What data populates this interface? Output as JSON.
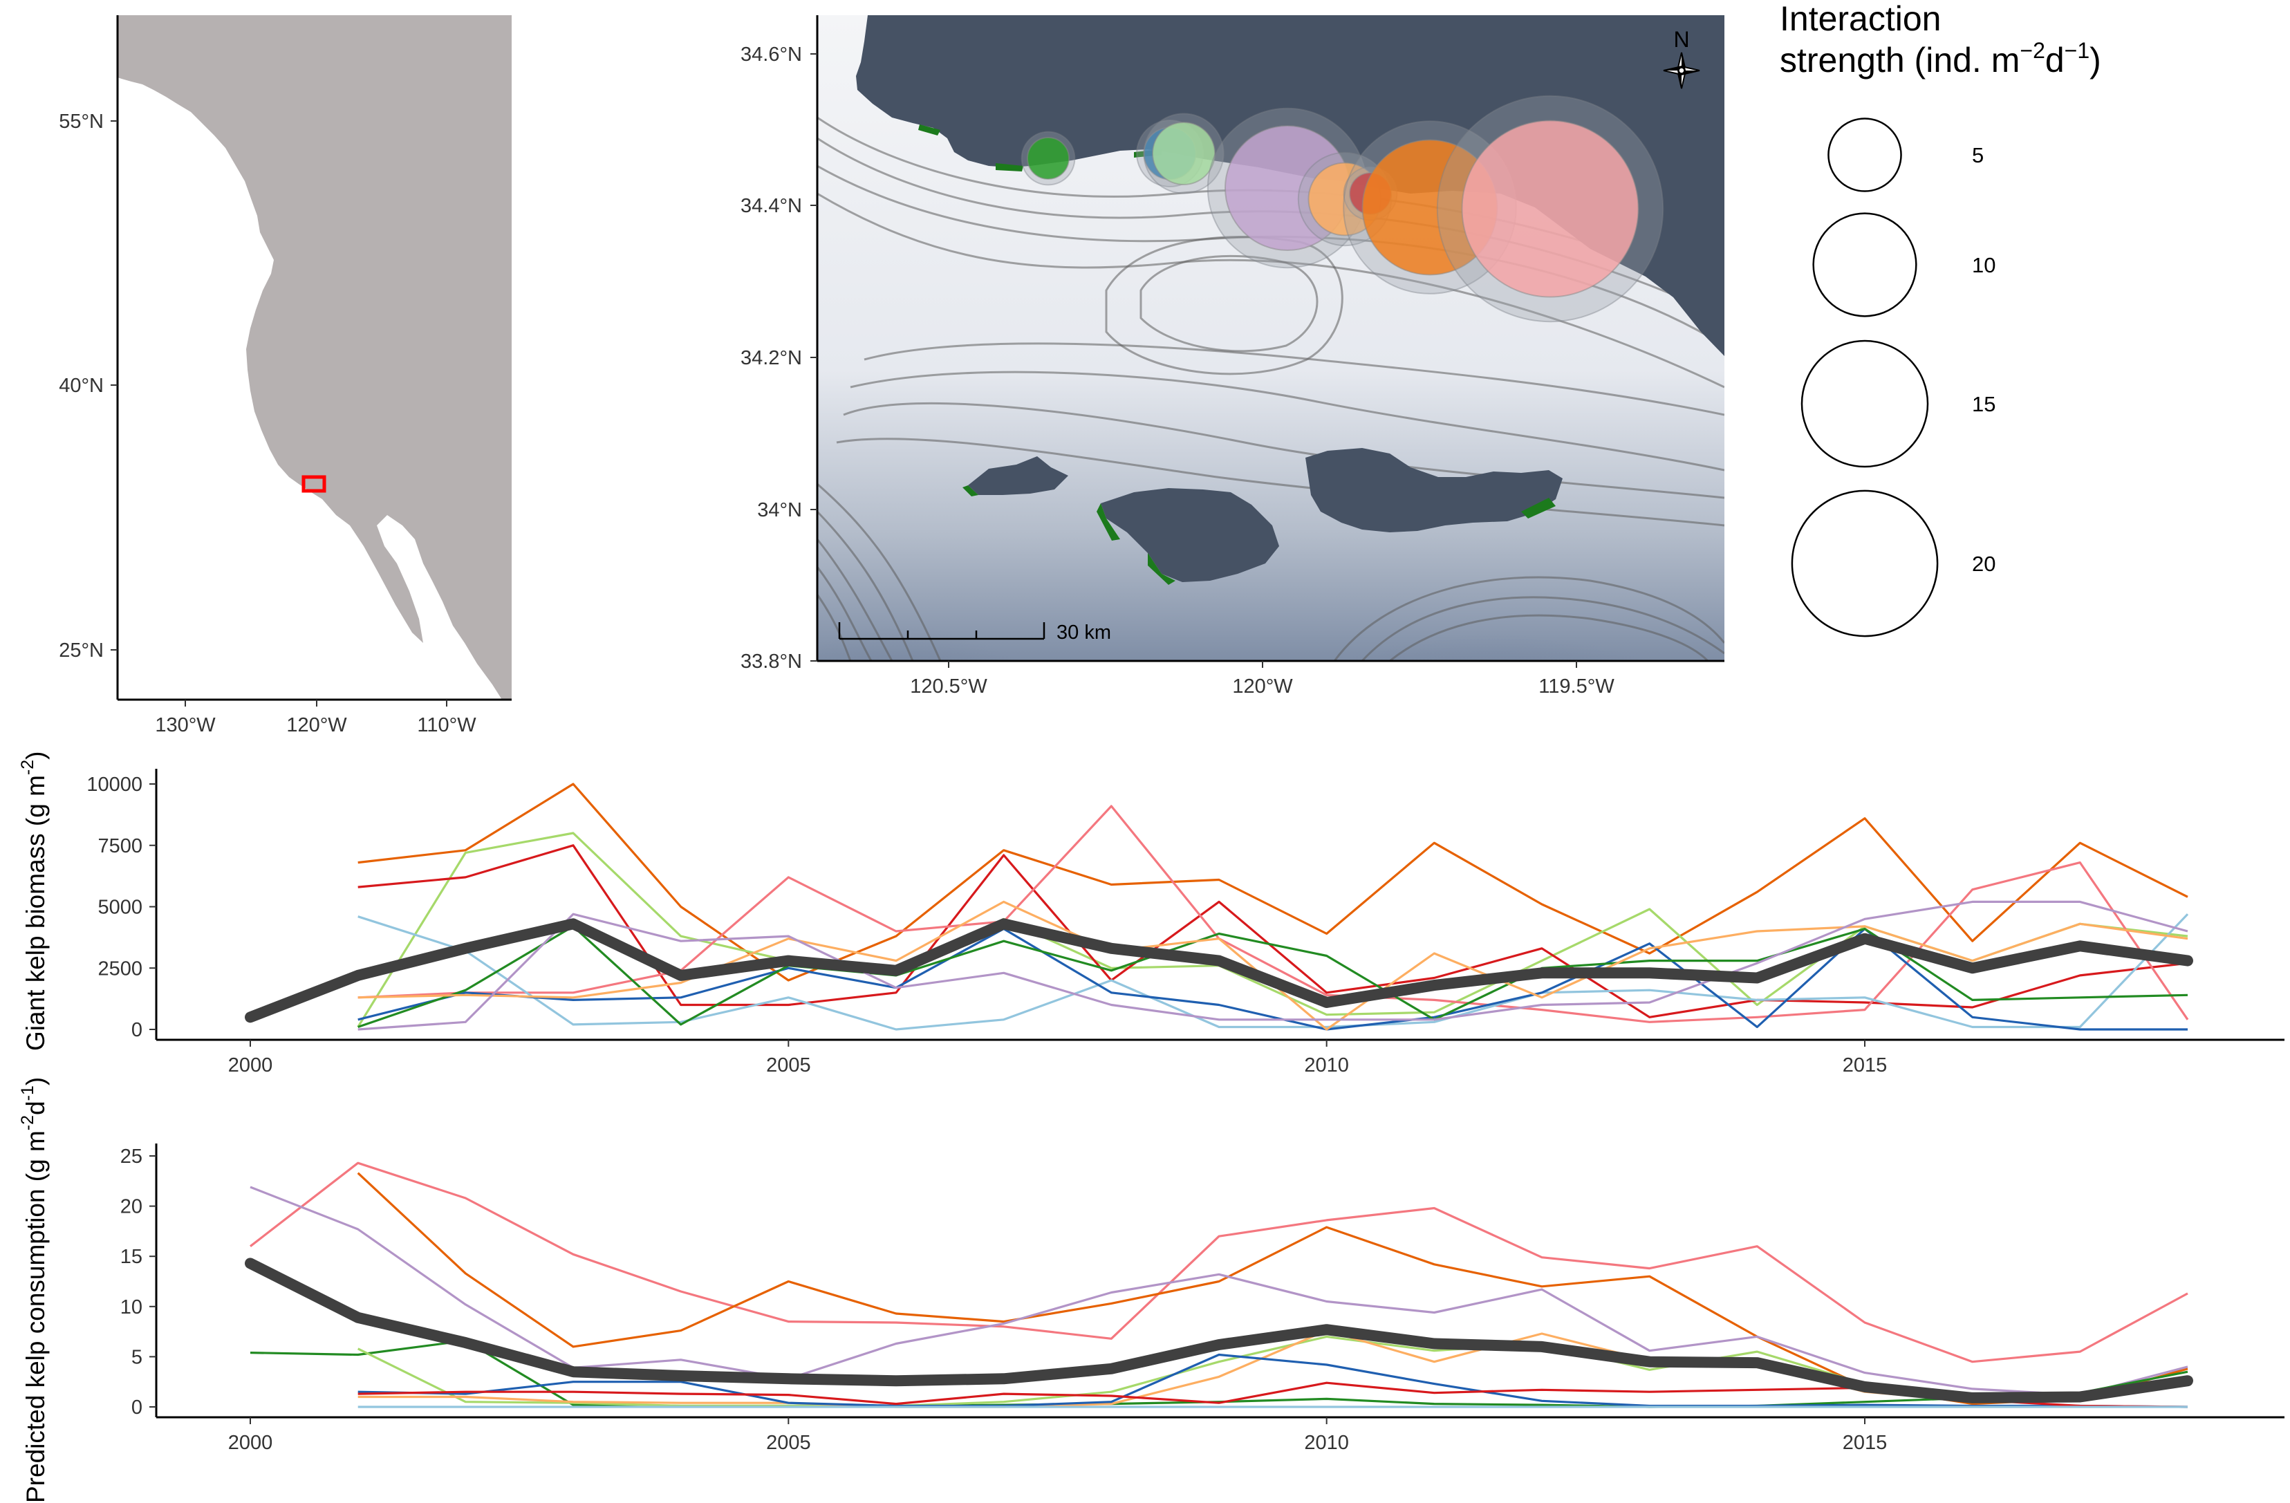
{
  "inset_map": {
    "y_ticks": [
      "55°N",
      "40°N",
      "25°N"
    ],
    "x_ticks": [
      "130°W",
      "120°W",
      "110°W"
    ],
    "land_color": "#b6b1b1"
  },
  "site_map": {
    "y_ticks": [
      "34.6°N",
      "34.4°N",
      "34.2°N",
      "34°N",
      "33.8°N"
    ],
    "x_ticks": [
      "120.5°W",
      "120°W",
      "119.5°W"
    ],
    "scale_bar": "30 km",
    "north_label": "N",
    "land_color": "#465264",
    "kelp_color": "#1c7a1c",
    "sites": [
      {
        "color": "#2ca02c",
        "strength": 4
      },
      {
        "color": "#1f78b4",
        "strength": 5
      },
      {
        "color": "#a6dba0",
        "strength": 6
      },
      {
        "color": "#c2a5cf",
        "strength": 12
      },
      {
        "color": "#fdae61",
        "strength": 7
      },
      {
        "color": "#d7191c",
        "strength": 4
      },
      {
        "color": "#f07f1f",
        "strength": 13
      },
      {
        "color": "#f4a6a8",
        "strength": 17
      }
    ]
  },
  "legend": {
    "title_line1": "Interaction",
    "title_line2_prefix": "strength (ind. m",
    "title_sup1": "−2",
    "title_mid": "d",
    "title_sup2": "−1",
    "title_end": ")",
    "sizes": [
      {
        "label": "5",
        "value": 5
      },
      {
        "label": "10",
        "value": 10
      },
      {
        "label": "15",
        "value": 15
      },
      {
        "label": "20",
        "value": 20
      }
    ]
  },
  "chart_data": [
    {
      "type": "line",
      "ylabel_prefix": "Giant kelp biomass (g m",
      "ylabel_sup": "-2",
      "ylabel_end": ")",
      "ylim": [
        0,
        10000
      ],
      "xlim": [
        2000,
        2018
      ],
      "y_ticks": [
        0,
        2500,
        5000,
        7500,
        10000
      ],
      "y_tick_labels": [
        "0",
        "2500",
        "5000",
        "7500",
        "10000"
      ],
      "x_ticks": [
        2000,
        2005,
        2010,
        2015
      ],
      "x_tick_labels": [
        "2000",
        "2005",
        "2010",
        "2015"
      ],
      "mean_color": "#404040",
      "series": [
        {
          "color": "#e66101",
          "x": [
            2001,
            2002,
            2003,
            2004,
            2005,
            2006,
            2007,
            2008,
            2009,
            2010,
            2011,
            2012,
            2013,
            2014,
            2015,
            2016,
            2017,
            2018
          ],
          "values": [
            6800,
            7300,
            10000,
            5000,
            2000,
            3800,
            7300,
            5900,
            6100,
            3900,
            7600,
            5100,
            3100,
            5600,
            8600,
            3600,
            7600,
            5400
          ]
        },
        {
          "color": "#a6d96a",
          "x": [
            2001,
            2002,
            2003,
            2004,
            2005,
            2006,
            2007,
            2008,
            2009,
            2010,
            2011,
            2012,
            2013,
            2014,
            2015,
            2016,
            2017,
            2018
          ],
          "values": [
            100,
            7200,
            8000,
            3800,
            2800,
            2200,
            4500,
            2500,
            2600,
            600,
            700,
            2800,
            4900,
            1000,
            4200,
            2800,
            4300,
            3800
          ]
        },
        {
          "color": "#d7191c",
          "x": [
            2001,
            2002,
            2003,
            2004,
            2005,
            2006,
            2007,
            2008,
            2009,
            2010,
            2011,
            2012,
            2013,
            2014,
            2015,
            2016,
            2017,
            2018
          ],
          "values": [
            5800,
            6200,
            7500,
            1000,
            1000,
            1500,
            7100,
            2000,
            5200,
            1500,
            2100,
            3300,
            500,
            1200,
            1100,
            900,
            2200,
            2700
          ]
        },
        {
          "color": "#f4777f",
          "x": [
            2001,
            2002,
            2003,
            2004,
            2005,
            2006,
            2007,
            2008,
            2009,
            2010,
            2011,
            2012,
            2013,
            2014,
            2015,
            2016,
            2017,
            2018
          ],
          "values": [
            1300,
            1500,
            1500,
            2400,
            6200,
            4000,
            4400,
            9100,
            3700,
            1400,
            1200,
            800,
            300,
            500,
            800,
            5700,
            6800,
            400
          ]
        },
        {
          "color": "#92c5de",
          "x": [
            2001,
            2002,
            2003,
            2004,
            2005,
            2006,
            2007,
            2008,
            2009,
            2010,
            2011,
            2012,
            2013,
            2014,
            2015,
            2016,
            2017,
            2018
          ],
          "values": [
            4600,
            3200,
            200,
            300,
            1300,
            0,
            400,
            2000,
            100,
            100,
            300,
            1500,
            1600,
            1200,
            1300,
            100,
            100,
            4700
          ]
        },
        {
          "color": "#1f5fb0",
          "x": [
            2001,
            2002,
            2003,
            2004,
            2005,
            2006,
            2007,
            2008,
            2009,
            2010,
            2011,
            2012,
            2013,
            2014,
            2015,
            2016,
            2017,
            2018
          ],
          "values": [
            400,
            1500,
            1200,
            1300,
            2500,
            1700,
            4100,
            1500,
            1000,
            0,
            500,
            1500,
            3500,
            100,
            4100,
            500,
            0,
            0
          ]
        },
        {
          "color": "#228b22",
          "x": [
            2001,
            2002,
            2003,
            2004,
            2005,
            2006,
            2007,
            2008,
            2009,
            2010,
            2011,
            2012,
            2013,
            2014,
            2015,
            2016,
            2017,
            2018
          ],
          "values": [
            100,
            1600,
            4200,
            200,
            2600,
            2200,
            3600,
            2400,
            3900,
            3000,
            400,
            2500,
            2800,
            2800,
            4100,
            1200,
            1300,
            1400
          ]
        },
        {
          "color": "#fdae61",
          "x": [
            2001,
            2002,
            2003,
            2004,
            2005,
            2006,
            2007,
            2008,
            2009,
            2010,
            2011,
            2012,
            2013,
            2014,
            2015,
            2016,
            2017,
            2018
          ],
          "values": [
            1300,
            1400,
            1300,
            1900,
            3700,
            2800,
            5200,
            3200,
            3700,
            0,
            3100,
            1300,
            3300,
            4000,
            4200,
            2800,
            4300,
            3700
          ]
        },
        {
          "color": "#b294c7",
          "x": [
            2001,
            2002,
            2003,
            2004,
            2005,
            2006,
            2007,
            2008,
            2009,
            2010,
            2011,
            2012,
            2013,
            2014,
            2015,
            2016,
            2017,
            2018
          ],
          "values": [
            0,
            300,
            4700,
            3600,
            3800,
            1700,
            2300,
            1000,
            400,
            400,
            400,
            1000,
            1100,
            2700,
            4500,
            5200,
            5200,
            4000
          ]
        }
      ],
      "mean": {
        "x": [
          2000,
          2001,
          2002,
          2003,
          2004,
          2005,
          2006,
          2007,
          2008,
          2009,
          2010,
          2011,
          2012,
          2013,
          2014,
          2015,
          2016,
          2017,
          2018
        ],
        "values": [
          500,
          2200,
          3300,
          4300,
          2200,
          2800,
          2400,
          4300,
          3300,
          2800,
          1100,
          1800,
          2300,
          2300,
          2100,
          3700,
          2500,
          3400,
          2800
        ]
      }
    },
    {
      "type": "line",
      "ylabel_prefix": "Predicted kelp consumption (g m",
      "ylabel_sup": "-2",
      "ylabel_mid": "d",
      "ylabel_sup2": "-1",
      "ylabel_end": ")",
      "ylim": [
        0,
        25
      ],
      "xlim": [
        2000,
        2018
      ],
      "y_ticks": [
        0,
        5,
        10,
        15,
        20,
        25
      ],
      "y_tick_labels": [
        "0",
        "5",
        "10",
        "15",
        "20",
        "25"
      ],
      "x_ticks": [
        2000,
        2005,
        2010,
        2015
      ],
      "x_tick_labels": [
        "2000",
        "2005",
        "2010",
        "2015"
      ],
      "mean_color": "#404040",
      "series": [
        {
          "color": "#f4777f",
          "x": [
            2000,
            2001,
            2002,
            2003,
            2004,
            2005,
            2006,
            2007,
            2008,
            2009,
            2010,
            2011,
            2012,
            2013,
            2014,
            2015,
            2016,
            2017,
            2018
          ],
          "values": [
            16,
            24.3,
            20.8,
            15.2,
            11.5,
            8.5,
            8.4,
            8,
            6.8,
            17,
            18.6,
            19.8,
            14.9,
            13.8,
            16,
            8.4,
            4.5,
            5.5,
            11.3
          ]
        },
        {
          "color": "#e66101",
          "x": [
            2001,
            2002,
            2003,
            2004,
            2005,
            2006,
            2007,
            2008,
            2009,
            2010,
            2011,
            2012,
            2013,
            2014,
            2015,
            2016,
            2017,
            2018
          ],
          "values": [
            23.3,
            13.3,
            6,
            7.6,
            12.5,
            9.3,
            8.5,
            10.3,
            12.5,
            17.9,
            14.2,
            12,
            13,
            7,
            2,
            0.3,
            0.8,
            3.8
          ]
        },
        {
          "color": "#b294c7",
          "x": [
            2000,
            2001,
            2002,
            2003,
            2004,
            2005,
            2006,
            2007,
            2008,
            2009,
            2010,
            2011,
            2012,
            2013,
            2014,
            2015,
            2016,
            2017,
            2018
          ],
          "values": [
            21.9,
            17.7,
            10.2,
            3.9,
            4.7,
            2.8,
            6.3,
            8.3,
            11.4,
            13.2,
            10.5,
            9.4,
            11.7,
            5.6,
            7,
            3.4,
            1.8,
            1.2,
            4
          ]
        },
        {
          "color": "#228b22",
          "x": [
            2000,
            2001,
            2002,
            2003,
            2004,
            2005,
            2006,
            2007,
            2008,
            2009,
            2010,
            2011,
            2012,
            2013,
            2014,
            2015,
            2016,
            2017,
            2018
          ],
          "values": [
            5.4,
            5.2,
            6.6,
            0.2,
            0.1,
            0.1,
            0.1,
            0.2,
            0.3,
            0.5,
            0.8,
            0.3,
            0.2,
            0,
            0.1,
            0.5,
            0.9,
            1.4,
            3.5
          ]
        },
        {
          "color": "#a6d96a",
          "x": [
            2001,
            2002,
            2003,
            2004,
            2005,
            2006,
            2007,
            2008,
            2009,
            2010,
            2011,
            2012,
            2013,
            2014,
            2015,
            2016,
            2017,
            2018
          ],
          "values": [
            5.8,
            0.5,
            0.4,
            0.1,
            0.1,
            0.1,
            0.5,
            1.5,
            4.5,
            7,
            5.6,
            6.3,
            3.7,
            5.5,
            2.3,
            0.5,
            1,
            3
          ]
        },
        {
          "color": "#fdae61",
          "x": [
            2001,
            2002,
            2003,
            2004,
            2005,
            2006,
            2007,
            2008,
            2009,
            2010,
            2011,
            2012,
            2013,
            2014,
            2015,
            2016,
            2017,
            2018
          ],
          "values": [
            1,
            1,
            0.5,
            0.4,
            0.4,
            0,
            0,
            0.3,
            3,
            7.6,
            4.5,
            7.3,
            4.6,
            4.3,
            1.5,
            0.6,
            0.8,
            2.8
          ]
        },
        {
          "color": "#1f5fb0",
          "x": [
            2001,
            2002,
            2003,
            2004,
            2005,
            2006,
            2007,
            2008,
            2009,
            2010,
            2011,
            2012,
            2013,
            2014,
            2015,
            2016,
            2017,
            2018
          ],
          "values": [
            1.5,
            1.3,
            2.5,
            2.5,
            0.4,
            0.1,
            0.1,
            0.5,
            5.2,
            4.2,
            2.3,
            0.6,
            0.1,
            0.1,
            0.2,
            0.1,
            0.1,
            0
          ]
        },
        {
          "color": "#d7191c",
          "x": [
            2001,
            2002,
            2003,
            2004,
            2005,
            2006,
            2007,
            2008,
            2009,
            2010,
            2011,
            2012,
            2013,
            2014,
            2015,
            2016,
            2017,
            2018
          ],
          "values": [
            1.3,
            1.5,
            1.5,
            1.3,
            1.2,
            0.3,
            1.3,
            1.1,
            0.4,
            2.4,
            1.4,
            1.7,
            1.5,
            1.7,
            1.9,
            0.7,
            0.1,
            0
          ]
        },
        {
          "color": "#92c5de",
          "x": [
            2001,
            2002,
            2003,
            2004,
            2005,
            2006,
            2007,
            2008,
            2009,
            2010,
            2011,
            2012,
            2013,
            2014,
            2015,
            2016,
            2017,
            2018
          ],
          "values": [
            0,
            0,
            0,
            0,
            0,
            0,
            0,
            0,
            0,
            0,
            0,
            0,
            0,
            0,
            0,
            0,
            0,
            0
          ]
        }
      ],
      "mean": {
        "x": [
          2000,
          2001,
          2002,
          2003,
          2004,
          2005,
          2006,
          2007,
          2008,
          2009,
          2010,
          2011,
          2012,
          2013,
          2014,
          2015,
          2016,
          2017,
          2018
        ],
        "values": [
          14.3,
          8.9,
          6.4,
          3.5,
          3.1,
          2.8,
          2.6,
          2.8,
          3.8,
          6.2,
          7.7,
          6.3,
          6,
          4.5,
          4.4,
          2,
          0.9,
          1,
          2.6
        ]
      }
    }
  ]
}
